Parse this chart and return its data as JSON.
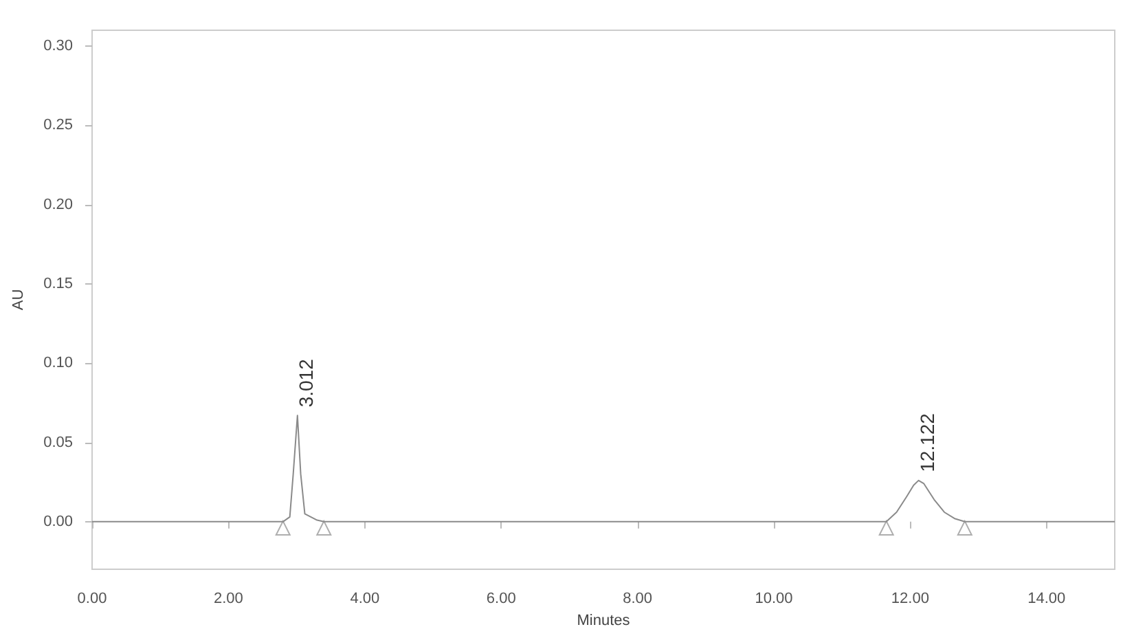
{
  "chart_data": {
    "type": "line",
    "xlabel": "Minutes",
    "ylabel": "AU",
    "xlim": [
      0,
      15
    ],
    "ylim": [
      -0.03,
      0.31
    ],
    "xticks": [
      {
        "value": 0,
        "label": "0.00"
      },
      {
        "value": 2,
        "label": "2.00"
      },
      {
        "value": 4,
        "label": "4.00"
      },
      {
        "value": 6,
        "label": "6.00"
      },
      {
        "value": 8,
        "label": "8.00"
      },
      {
        "value": 10,
        "label": "10.00"
      },
      {
        "value": 12,
        "label": "12.00"
      },
      {
        "value": 14,
        "label": "14.00"
      }
    ],
    "yticks": [
      {
        "value": 0,
        "label": "0.00"
      },
      {
        "value": 0.05,
        "label": "0.05"
      },
      {
        "value": 0.1,
        "label": "0.10"
      },
      {
        "value": 0.15,
        "label": "0.15"
      },
      {
        "value": 0.2,
        "label": "0.20"
      },
      {
        "value": 0.25,
        "label": "0.25"
      },
      {
        "value": 0.3,
        "label": "0.30"
      }
    ],
    "grid": false,
    "marker": "none",
    "series": [
      {
        "type": "line",
        "color": "#8a8a8a",
        "x": [
          0,
          2.8,
          2.9,
          2.95,
          3.012,
          3.06,
          3.12,
          3.3,
          3.4,
          11.65,
          11.8,
          11.95,
          12.05,
          12.122,
          12.2,
          12.35,
          12.5,
          12.65,
          12.8,
          15
        ],
        "values": [
          0,
          0,
          0.003,
          0.03,
          0.067,
          0.03,
          0.005,
          0.001,
          0,
          0,
          0.006,
          0.016,
          0.023,
          0.026,
          0.024,
          0.014,
          0.006,
          0.002,
          0,
          0
        ]
      },
      {
        "type": "scatter",
        "marker": "triangle",
        "color": "#9a9a9a",
        "x": [
          2.8,
          3.4,
          11.65,
          12.8
        ],
        "values": [
          -0.004,
          -0.004,
          -0.004,
          -0.004
        ]
      }
    ],
    "annotations": [
      {
        "text": "3.012",
        "x": 3.012,
        "y": 0.067
      },
      {
        "text": "12.122",
        "x": 12.122,
        "y": 0.026
      }
    ]
  }
}
